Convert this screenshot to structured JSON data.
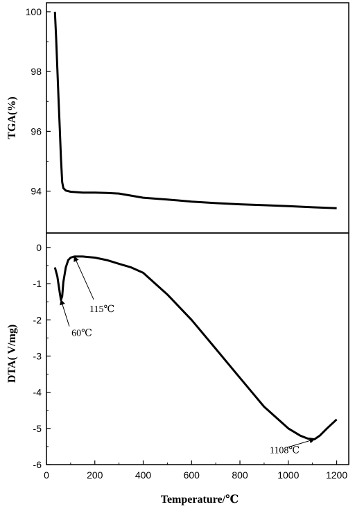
{
  "chart_data": [
    {
      "type": "line",
      "panel": "top",
      "ylabel": "TGA(%)",
      "xlabel": "",
      "xlim": [
        0,
        1250
      ],
      "ylim": [
        92.6,
        100.3
      ],
      "yticks": [
        94,
        96,
        98,
        100
      ],
      "ytick_labels": [
        "94",
        "96",
        "98",
        "100"
      ],
      "grid": false,
      "series": [
        {
          "x": [
            35,
            40,
            45,
            50,
            55,
            60,
            65,
            70,
            80,
            100,
            150,
            200,
            250,
            300,
            350,
            400,
            500,
            600,
            700,
            800,
            900,
            1000,
            1100,
            1200
          ],
          "y": [
            100.0,
            99.1,
            98.1,
            97.1,
            96.1,
            95.1,
            94.3,
            94.1,
            94.02,
            93.98,
            93.95,
            93.95,
            93.94,
            93.92,
            93.85,
            93.78,
            93.72,
            93.65,
            93.6,
            93.56,
            93.53,
            93.5,
            93.46,
            93.43
          ]
        }
      ]
    },
    {
      "type": "line",
      "panel": "bottom",
      "ylabel": "DTA( V/mg)",
      "xlabel": "Temperature/℃",
      "xlim": [
        0,
        1250
      ],
      "ylim": [
        -6,
        0.4
      ],
      "xticks": [
        0,
        200,
        400,
        600,
        800,
        1000,
        1200
      ],
      "xtick_labels": [
        "0",
        "200",
        "400",
        "600",
        "800",
        "1000",
        "1200"
      ],
      "yticks": [
        0,
        -1,
        -2,
        -3,
        -4,
        -5,
        -6
      ],
      "ytick_labels": [
        "0",
        "-1",
        "-2",
        "-3",
        "-4",
        "-5",
        "-6"
      ],
      "grid": false,
      "series": [
        {
          "x": [
            35,
            45,
            55,
            60,
            65,
            70,
            80,
            90,
            100,
            115,
            150,
            200,
            250,
            300,
            350,
            400,
            500,
            600,
            700,
            800,
            900,
            1000,
            1050,
            1080,
            1108,
            1130,
            1160,
            1200
          ],
          "y": [
            -0.55,
            -0.8,
            -1.25,
            -1.45,
            -1.35,
            -0.95,
            -0.55,
            -0.35,
            -0.28,
            -0.25,
            -0.25,
            -0.28,
            -0.35,
            -0.45,
            -0.55,
            -0.7,
            -1.3,
            -2.0,
            -2.8,
            -3.6,
            -4.4,
            -5.0,
            -5.2,
            -5.28,
            -5.3,
            -5.2,
            -5.0,
            -4.75
          ]
        }
      ],
      "annotations": [
        {
          "text": "115℃",
          "x": 115,
          "y": -0.25
        },
        {
          "text": "60℃",
          "x": 60,
          "y": -1.45
        },
        {
          "text": "1108℃",
          "x": 1108,
          "y": -5.3
        }
      ]
    }
  ]
}
